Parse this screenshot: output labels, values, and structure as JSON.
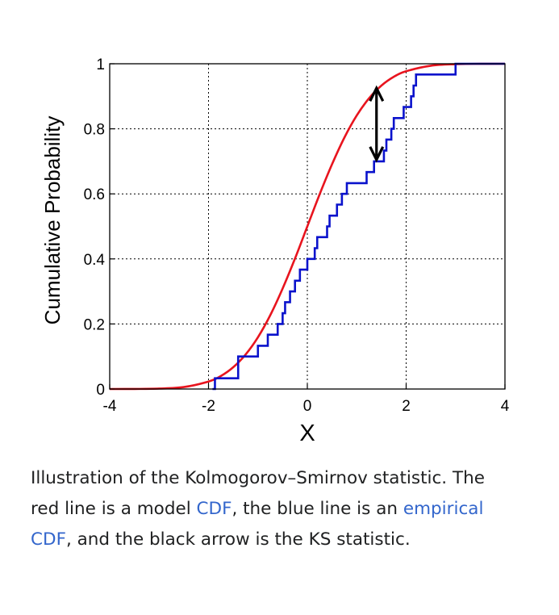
{
  "chart_data": {
    "type": "line",
    "xlabel": "X",
    "ylabel": "Cumulative Probability",
    "xlim": [
      -4,
      4
    ],
    "ylim": [
      0,
      1
    ],
    "x_ticks": [
      "-4",
      "-2",
      "0",
      "2",
      "4"
    ],
    "y_ticks": [
      "0",
      "0.2",
      "0.4",
      "0.6",
      "0.8",
      "1"
    ],
    "grid": true,
    "series": [
      {
        "color": "#e8141e",
        "style": "smooth",
        "x": [
          -4.0,
          -3.5,
          -3.0,
          -2.5,
          -2.0,
          -1.75,
          -1.5,
          -1.25,
          -1.0,
          -0.75,
          -0.5,
          -0.25,
          0.0,
          0.25,
          0.5,
          0.75,
          1.0,
          1.25,
          1.5,
          1.75,
          2.0,
          2.5,
          3.0,
          3.5,
          4.0
        ],
        "y": [
          0.0,
          0.0002,
          0.0013,
          0.006,
          0.023,
          0.04,
          0.067,
          0.106,
          0.159,
          0.227,
          0.309,
          0.401,
          0.5,
          0.599,
          0.691,
          0.773,
          0.841,
          0.894,
          0.933,
          0.96,
          0.977,
          0.994,
          0.9987,
          0.9998,
          1.0
        ]
      },
      {
        "color": "#0a12cc",
        "style": "step",
        "x": [
          -1.92,
          -1.87,
          -1.4,
          -1.0,
          -0.8,
          -0.6,
          -0.5,
          -0.45,
          -0.35,
          -0.25,
          -0.15,
          0.0,
          0.15,
          0.2,
          0.4,
          0.45,
          0.6,
          0.7,
          0.8,
          1.2,
          1.35,
          1.55,
          1.6,
          1.7,
          1.75,
          1.95,
          2.1,
          2.15,
          2.2,
          3.0
        ],
        "y": [
          0.0,
          0.033,
          0.1,
          0.133,
          0.167,
          0.2,
          0.233,
          0.267,
          0.3,
          0.333,
          0.367,
          0.4,
          0.433,
          0.467,
          0.5,
          0.533,
          0.567,
          0.6,
          0.633,
          0.667,
          0.7,
          0.733,
          0.767,
          0.8,
          0.833,
          0.867,
          0.9,
          0.933,
          0.967,
          1.0
        ]
      }
    ],
    "annotation": {
      "type": "double-arrow",
      "x": 1.4,
      "y_from": 0.705,
      "y_to": 0.925,
      "color": "#000000"
    }
  },
  "caption": {
    "part1": "Illustration of the Kolmogorov–Smirnov statistic. The red line is a model ",
    "link1": "CDF",
    "part2": ", the blue line is an ",
    "link2": "empirical CDF",
    "part3": ", and the black arrow is the KS statistic."
  },
  "colors": {
    "link": "#3366cc",
    "text": "#202122"
  }
}
